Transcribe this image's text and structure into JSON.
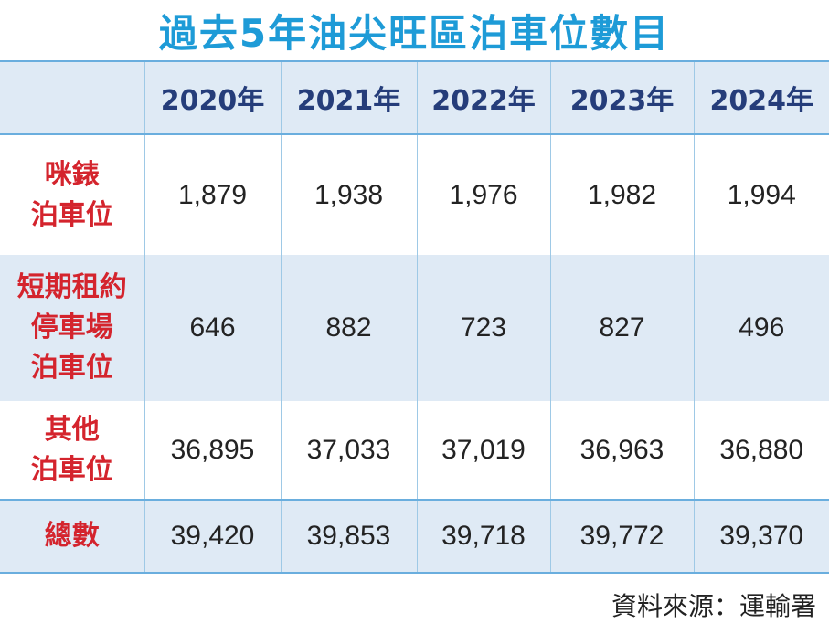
{
  "title": "過去5年油尖旺區泊車位數目",
  "chart_data": {
    "type": "table",
    "columns": [
      "2020年",
      "2021年",
      "2022年",
      "2023年",
      "2024年"
    ],
    "rows": [
      {
        "label_lines": [
          "咪錶",
          "泊車位"
        ],
        "values": [
          "1,879",
          "1,938",
          "1,976",
          "1,982",
          "1,994"
        ]
      },
      {
        "label_lines": [
          "短期租約",
          "停車場",
          "泊車位"
        ],
        "values": [
          "646",
          "882",
          "723",
          "827",
          "496"
        ]
      },
      {
        "label_lines": [
          "其他",
          "泊車位"
        ],
        "values": [
          "36,895",
          "37,033",
          "37,019",
          "36,963",
          "36,880"
        ]
      },
      {
        "label_lines": [
          "總數"
        ],
        "values": [
          "39,420",
          "39,853",
          "39,718",
          "39,772",
          "39,370"
        ]
      }
    ]
  },
  "source": "資料來源：運輸署",
  "colors": {
    "title": "#1e9bd7",
    "header_text": "#253d7a",
    "row_label": "#d4242d",
    "shade": "#dfeaf5",
    "rule": "#6aaede"
  }
}
